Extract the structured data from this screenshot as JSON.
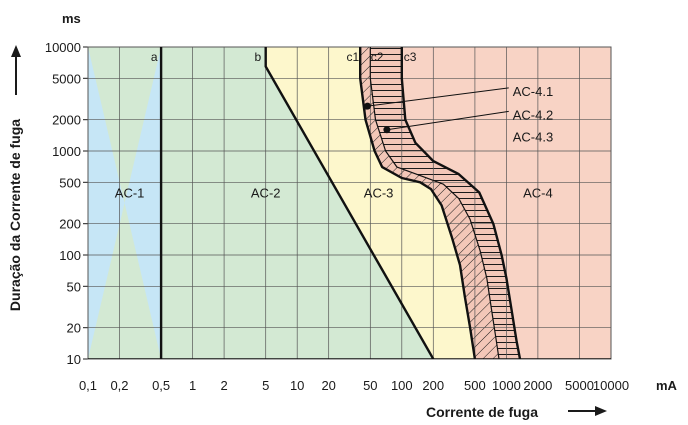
{
  "chart_data": {
    "type": "line",
    "title": "",
    "xlabel": "Corrente de fuga",
    "ylabel": "Duração da Corrente de fuga",
    "x_unit": "mA",
    "y_unit": "ms",
    "x_scale": "log",
    "y_scale": "log",
    "xlim": [
      0.1,
      10000
    ],
    "ylim": [
      10,
      10000
    ],
    "grid": true,
    "x_ticks": [
      {
        "value": 0.1,
        "label": "0,1"
      },
      {
        "value": 0.2,
        "label": "0,2"
      },
      {
        "value": 0.5,
        "label": "0,5"
      },
      {
        "value": 1,
        "label": "1"
      },
      {
        "value": 2,
        "label": "2"
      },
      {
        "value": 5,
        "label": "5"
      },
      {
        "value": 10,
        "label": "10"
      },
      {
        "value": 20,
        "label": "20"
      },
      {
        "value": 50,
        "label": "50"
      },
      {
        "value": 100,
        "label": "100"
      },
      {
        "value": 200,
        "label": "200"
      },
      {
        "value": 500,
        "label": "500"
      },
      {
        "value": 1000,
        "label": "1000"
      },
      {
        "value": 2000,
        "label": "2000"
      },
      {
        "value": 5000,
        "label": "5000"
      },
      {
        "value": 10000,
        "label": "10000"
      }
    ],
    "y_ticks": [
      {
        "value": 10,
        "label": "10"
      },
      {
        "value": 20,
        "label": "20"
      },
      {
        "value": 50,
        "label": "50"
      },
      {
        "value": 100,
        "label": "100"
      },
      {
        "value": 200,
        "label": "200"
      },
      {
        "value": 500,
        "label": "500"
      },
      {
        "value": 1000,
        "label": "1000"
      },
      {
        "value": 2000,
        "label": "2000"
      },
      {
        "value": 5000,
        "label": "5000"
      },
      {
        "value": 10000,
        "label": "10000"
      }
    ],
    "zones": [
      {
        "label": "AC-1",
        "label_x": 0.25,
        "label_y": 400,
        "color": "#c6e6f6"
      },
      {
        "label": "AC-2",
        "label_x": 5,
        "label_y": 400,
        "color": "#d3e9d3"
      },
      {
        "label": "AC-3",
        "label_x": 60,
        "label_y": 400,
        "color": "#fdf7cc"
      },
      {
        "label": "AC-4",
        "label_x": 2000,
        "label_y": 400,
        "color": "#f8d3c5"
      }
    ],
    "series": [
      {
        "name": "a",
        "label_x": 0.43,
        "label_y": 8000,
        "points": [
          [
            0.5,
            10
          ],
          [
            0.5,
            10000
          ]
        ]
      },
      {
        "name": "b",
        "label_x": 4.2,
        "label_y": 8000,
        "points": [
          [
            5,
            10000
          ],
          [
            5,
            6500
          ],
          [
            200,
            10
          ]
        ]
      },
      {
        "name": "c1",
        "label_x": 34,
        "label_y": 8000,
        "points": [
          [
            40,
            10000
          ],
          [
            40,
            5000
          ],
          [
            45,
            2000
          ],
          [
            55,
            1000
          ],
          [
            65,
            700
          ],
          [
            100,
            550
          ],
          [
            150,
            500
          ],
          [
            190,
            430
          ],
          [
            240,
            300
          ],
          [
            300,
            150
          ],
          [
            360,
            80
          ],
          [
            400,
            40
          ],
          [
            450,
            20
          ],
          [
            500,
            10
          ]
        ]
      },
      {
        "name": "c2",
        "label_x": 58,
        "label_y": 8000,
        "points": [
          [
            50,
            10000
          ],
          [
            50,
            5000
          ],
          [
            56,
            2000
          ],
          [
            70,
            1000
          ],
          [
            90,
            700
          ],
          [
            150,
            580
          ],
          [
            250,
            480
          ],
          [
            350,
            350
          ],
          [
            450,
            220
          ],
          [
            560,
            110
          ],
          [
            650,
            60
          ],
          [
            720,
            30
          ],
          [
            800,
            15
          ],
          [
            850,
            10
          ]
        ]
      },
      {
        "name": "c3",
        "label_x": 120,
        "label_y": 8000,
        "points": [
          [
            100,
            10000
          ],
          [
            100,
            5000
          ],
          [
            108,
            2000
          ],
          [
            135,
            1200
          ],
          [
            200,
            800
          ],
          [
            350,
            600
          ],
          [
            550,
            400
          ],
          [
            750,
            200
          ],
          [
            900,
            100
          ],
          [
            1000,
            60
          ],
          [
            1120,
            30
          ],
          [
            1250,
            15
          ],
          [
            1350,
            10
          ]
        ]
      }
    ],
    "annotations": [
      {
        "label": "AC-4.1",
        "text_x": 1150,
        "text_y": 3700,
        "dot_x": 47,
        "dot_y": 2700
      },
      {
        "label": "AC-4.2",
        "text_x": 1150,
        "text_y": 2200,
        "dot_x": 72,
        "dot_y": 1600
      },
      {
        "label": "AC-4.3",
        "text_x": 1150,
        "text_y": 1350,
        "dot_x": null,
        "dot_y": null
      }
    ]
  }
}
